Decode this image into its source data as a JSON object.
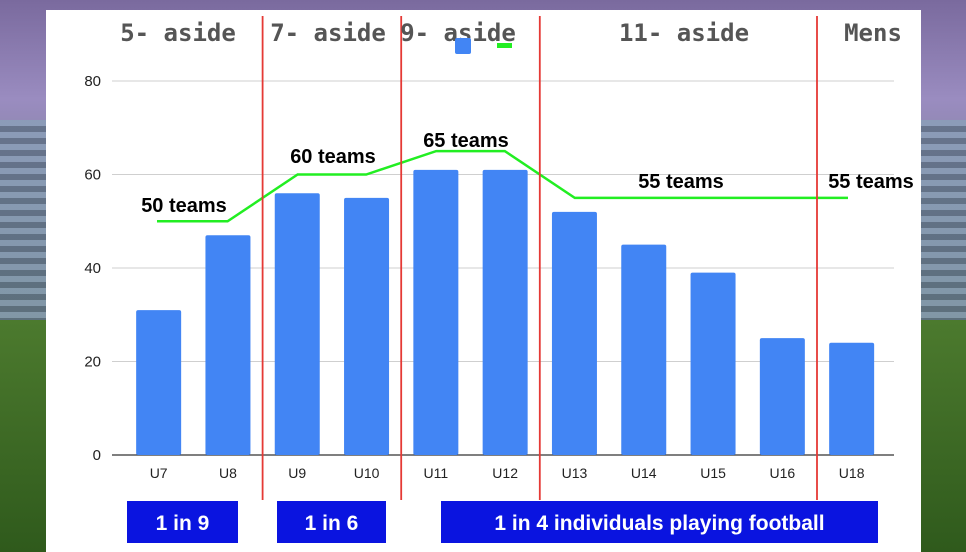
{
  "chart_data": {
    "type": "bar",
    "categories": [
      "U7",
      "U8",
      "U9",
      "U10",
      "U11",
      "U12",
      "U13",
      "U14",
      "U15",
      "U16",
      "U18"
    ],
    "values": [
      31,
      47,
      56,
      55,
      61,
      61,
      52,
      45,
      39,
      25,
      24
    ],
    "ylim": [
      0,
      80
    ],
    "yticks": [
      0,
      20,
      40,
      60,
      80
    ],
    "grid": true,
    "series": [
      {
        "name": "",
        "type": "bar",
        "color": "#4285f4",
        "values": [
          31,
          47,
          56,
          55,
          61,
          61,
          52,
          45,
          39,
          25,
          24
        ]
      },
      {
        "name": "",
        "type": "line",
        "color": "#22ee22",
        "values": [
          50,
          50,
          60,
          60,
          65,
          65,
          55,
          55,
          55,
          55,
          55
        ]
      }
    ],
    "sections": [
      {
        "label": "5- aside"
      },
      {
        "label": "7- aside"
      },
      {
        "label": "9- aside"
      },
      {
        "label": "11- aside"
      },
      {
        "label": "Mens"
      }
    ],
    "annotations": [
      {
        "text": "50 teams"
      },
      {
        "text": "60 teams"
      },
      {
        "text": "65 teams"
      },
      {
        "text": "55 teams"
      },
      {
        "text": "55 teams"
      }
    ],
    "participation_labels": [
      {
        "text": "1 in 9"
      },
      {
        "text": "1 in 6"
      },
      {
        "text": "1 in 4 individuals playing football"
      }
    ],
    "colors": {
      "bar": "#4285f4",
      "line": "#22ee22",
      "divider": "#e53935",
      "label_box": "#0a14e0"
    }
  }
}
